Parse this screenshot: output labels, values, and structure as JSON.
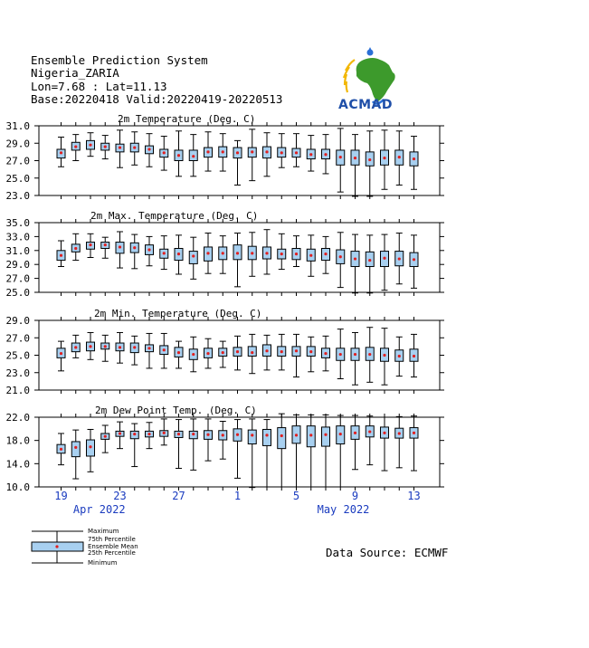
{
  "header": {
    "line1": "Ensemble Prediction System",
    "line2": "Nigeria_ZARIA",
    "line3": "Lon=7.68 : Lat=11.13",
    "line4": "Base:20220418 Valid:20220419-20220513"
  },
  "logo": {
    "text": "ACMAD",
    "icon": "africa-map-logo-icon"
  },
  "source": "Data Source: ECMWF",
  "legend": {
    "maximum": "Maximum",
    "p75": "75th Percentile",
    "mean": "Ensemble Mean",
    "p25": "25th Percentile",
    "minimum": "Minimum"
  },
  "colors": {
    "box_fill": "#a8d0f0",
    "mean_dot": "#e02020",
    "axis_label": "#1a3bbf"
  },
  "x_axis": {
    "day_labels": [
      {
        "i": 0,
        "label": "19"
      },
      {
        "i": 4,
        "label": "23"
      },
      {
        "i": 8,
        "label": "27"
      },
      {
        "i": 12,
        "label": "1"
      },
      {
        "i": 16,
        "label": "5"
      },
      {
        "i": 20,
        "label": "9"
      },
      {
        "i": 24,
        "label": "13"
      }
    ],
    "month_labels": [
      {
        "i": 2.6,
        "label": "Apr 2022"
      },
      {
        "i": 19.2,
        "label": "May 2022"
      }
    ]
  },
  "chart_data": [
    {
      "type": "box",
      "title": "2m Temperature (Deg. C)",
      "ylim": [
        23.0,
        31.0
      ],
      "yticks": [
        "23.0",
        "25.0",
        "27.0",
        "29.0",
        "31.0"
      ],
      "yvals": [
        23,
        25,
        27,
        29,
        31
      ],
      "boxes": [
        {
          "min": 26.3,
          "q1": 27.3,
          "mean": 27.9,
          "q3": 28.3,
          "max": 29.7
        },
        {
          "min": 27.0,
          "q1": 28.2,
          "mean": 28.6,
          "q3": 29.1,
          "max": 30.0
        },
        {
          "min": 27.5,
          "q1": 28.3,
          "mean": 28.8,
          "q3": 29.3,
          "max": 30.2
        },
        {
          "min": 27.2,
          "q1": 28.2,
          "mean": 28.6,
          "q3": 29.0,
          "max": 29.9
        },
        {
          "min": 26.2,
          "q1": 28.0,
          "mean": 28.5,
          "q3": 28.9,
          "max": 30.5
        },
        {
          "min": 26.5,
          "q1": 28.0,
          "mean": 28.5,
          "q3": 29.0,
          "max": 30.3
        },
        {
          "min": 26.3,
          "q1": 27.8,
          "mean": 28.3,
          "q3": 28.7,
          "max": 30.1
        },
        {
          "min": 25.9,
          "q1": 27.4,
          "mean": 27.9,
          "q3": 28.3,
          "max": 29.8
        },
        {
          "min": 25.2,
          "q1": 27.0,
          "mean": 27.6,
          "q3": 28.2,
          "max": 30.4
        },
        {
          "min": 25.2,
          "q1": 27.0,
          "mean": 27.5,
          "q3": 28.2,
          "max": 30.0
        },
        {
          "min": 25.8,
          "q1": 27.4,
          "mean": 28.0,
          "q3": 28.5,
          "max": 30.3
        },
        {
          "min": 25.8,
          "q1": 27.4,
          "mean": 28.0,
          "q3": 28.6,
          "max": 30.1
        },
        {
          "min": 24.2,
          "q1": 27.3,
          "mean": 27.9,
          "q3": 28.5,
          "max": 29.3
        },
        {
          "min": 24.7,
          "q1": 27.4,
          "mean": 28.0,
          "q3": 28.5,
          "max": 30.6
        },
        {
          "min": 25.2,
          "q1": 27.3,
          "mean": 28.0,
          "q3": 28.6,
          "max": 30.2
        },
        {
          "min": 26.2,
          "q1": 27.4,
          "mean": 27.9,
          "q3": 28.5,
          "max": 30.1
        },
        {
          "min": 26.3,
          "q1": 27.4,
          "mean": 27.9,
          "q3": 28.4,
          "max": 30.1
        },
        {
          "min": 25.8,
          "q1": 27.2,
          "mean": 27.7,
          "q3": 28.3,
          "max": 29.9
        },
        {
          "min": 25.5,
          "q1": 27.2,
          "mean": 27.7,
          "q3": 28.3,
          "max": 30.0
        },
        {
          "min": 23.4,
          "q1": 26.5,
          "mean": 27.4,
          "q3": 28.2,
          "max": 30.7
        },
        {
          "min": 22.9,
          "q1": 26.5,
          "mean": 27.3,
          "q3": 28.2,
          "max": 30.0
        },
        {
          "min": 22.9,
          "q1": 26.4,
          "mean": 27.1,
          "q3": 28.0,
          "max": 30.4
        },
        {
          "min": 23.7,
          "q1": 26.5,
          "mean": 27.3,
          "q3": 28.2,
          "max": 30.5
        },
        {
          "min": 24.2,
          "q1": 26.5,
          "mean": 27.4,
          "q3": 28.2,
          "max": 30.4
        },
        {
          "min": 23.7,
          "q1": 26.4,
          "mean": 27.2,
          "q3": 28.0,
          "max": 29.8
        }
      ]
    },
    {
      "type": "box",
      "title": "2m Max. Temperature (Deg. C)",
      "ylim": [
        25.0,
        35.0
      ],
      "yticks": [
        "25.0",
        "27.0",
        "29.0",
        "31.0",
        "33.0",
        "35.0"
      ],
      "yvals": [
        25,
        27,
        29,
        31,
        33,
        35
      ],
      "boxes": [
        {
          "min": 28.7,
          "q1": 29.6,
          "mean": 30.3,
          "q3": 31.0,
          "max": 32.4
        },
        {
          "min": 29.6,
          "q1": 30.8,
          "mean": 31.3,
          "q3": 31.9,
          "max": 33.4
        },
        {
          "min": 30.0,
          "q1": 31.2,
          "mean": 31.8,
          "q3": 32.2,
          "max": 33.4
        },
        {
          "min": 29.9,
          "q1": 31.3,
          "mean": 31.8,
          "q3": 32.2,
          "max": 32.9
        },
        {
          "min": 28.5,
          "q1": 30.6,
          "mean": 31.5,
          "q3": 32.2,
          "max": 33.7
        },
        {
          "min": 28.4,
          "q1": 30.7,
          "mean": 31.4,
          "q3": 32.1,
          "max": 33.3
        },
        {
          "min": 28.8,
          "q1": 30.4,
          "mean": 31.1,
          "q3": 31.8,
          "max": 33.0
        },
        {
          "min": 28.3,
          "q1": 29.9,
          "mean": 30.6,
          "q3": 31.2,
          "max": 33.1
        },
        {
          "min": 27.6,
          "q1": 29.6,
          "mean": 30.5,
          "q3": 31.3,
          "max": 33.2
        },
        {
          "min": 26.9,
          "q1": 29.1,
          "mean": 30.2,
          "q3": 30.9,
          "max": 32.9
        },
        {
          "min": 27.7,
          "q1": 29.5,
          "mean": 30.6,
          "q3": 31.5,
          "max": 33.5
        },
        {
          "min": 27.7,
          "q1": 29.7,
          "mean": 30.6,
          "q3": 31.5,
          "max": 33.1
        },
        {
          "min": 25.8,
          "q1": 29.7,
          "mean": 30.6,
          "q3": 31.8,
          "max": 33.5
        },
        {
          "min": 27.3,
          "q1": 29.7,
          "mean": 30.6,
          "q3": 31.6,
          "max": 33.6
        },
        {
          "min": 27.6,
          "q1": 29.8,
          "mean": 30.6,
          "q3": 31.5,
          "max": 34.0
        },
        {
          "min": 28.3,
          "q1": 29.8,
          "mean": 30.5,
          "q3": 31.2,
          "max": 33.4
        },
        {
          "min": 28.7,
          "q1": 29.7,
          "mean": 30.5,
          "q3": 31.3,
          "max": 33.1
        },
        {
          "min": 27.3,
          "q1": 29.5,
          "mean": 30.3,
          "q3": 31.2,
          "max": 33.2
        },
        {
          "min": 27.7,
          "q1": 29.6,
          "mean": 30.5,
          "q3": 31.3,
          "max": 33.0
        },
        {
          "min": 25.7,
          "q1": 29.1,
          "mean": 30.1,
          "q3": 31.1,
          "max": 33.6
        },
        {
          "min": 24.9,
          "q1": 28.7,
          "mean": 29.8,
          "q3": 30.9,
          "max": 33.3
        },
        {
          "min": 24.9,
          "q1": 28.7,
          "mean": 29.6,
          "q3": 30.8,
          "max": 33.2
        },
        {
          "min": 25.3,
          "q1": 28.7,
          "mean": 29.9,
          "q3": 30.9,
          "max": 33.3
        },
        {
          "min": 26.2,
          "q1": 28.8,
          "mean": 29.8,
          "q3": 30.9,
          "max": 33.5
        },
        {
          "min": 25.6,
          "q1": 28.7,
          "mean": 29.7,
          "q3": 30.7,
          "max": 33.2
        }
      ]
    },
    {
      "type": "box",
      "title": "2m Min. Temperature (Deg. C)",
      "ylim": [
        21.0,
        29.0
      ],
      "yticks": [
        "21.0",
        "23.0",
        "25.0",
        "27.0",
        "29.0"
      ],
      "yvals": [
        21,
        23,
        25,
        27,
        29
      ],
      "boxes": [
        {
          "min": 23.2,
          "q1": 24.7,
          "mean": 25.2,
          "q3": 25.8,
          "max": 26.6
        },
        {
          "min": 24.7,
          "q1": 25.4,
          "mean": 25.9,
          "q3": 26.4,
          "max": 27.3
        },
        {
          "min": 24.5,
          "q1": 25.5,
          "mean": 26.0,
          "q3": 26.5,
          "max": 27.6
        },
        {
          "min": 24.3,
          "q1": 25.7,
          "mean": 26.0,
          "q3": 26.4,
          "max": 27.3
        },
        {
          "min": 24.1,
          "q1": 25.5,
          "mean": 25.9,
          "q3": 26.4,
          "max": 27.6
        },
        {
          "min": 23.9,
          "q1": 25.3,
          "mean": 25.9,
          "q3": 26.4,
          "max": 27.2
        },
        {
          "min": 23.5,
          "q1": 25.4,
          "mean": 25.8,
          "q3": 26.2,
          "max": 27.5
        },
        {
          "min": 23.5,
          "q1": 25.1,
          "mean": 25.6,
          "q3": 26.1,
          "max": 27.5
        },
        {
          "min": 23.5,
          "q1": 24.8,
          "mean": 25.3,
          "q3": 25.9,
          "max": 26.6
        },
        {
          "min": 23.1,
          "q1": 24.5,
          "mean": 25.1,
          "q3": 25.7,
          "max": 27.1
        },
        {
          "min": 23.5,
          "q1": 24.7,
          "mean": 25.2,
          "q3": 25.8,
          "max": 26.9
        },
        {
          "min": 23.6,
          "q1": 24.9,
          "mean": 25.3,
          "q3": 25.8,
          "max": 26.6
        },
        {
          "min": 23.3,
          "q1": 24.9,
          "mean": 25.4,
          "q3": 25.9,
          "max": 27.2
        },
        {
          "min": 22.9,
          "q1": 24.9,
          "mean": 25.3,
          "q3": 26.0,
          "max": 27.4
        },
        {
          "min": 23.3,
          "q1": 24.9,
          "mean": 25.5,
          "q3": 26.2,
          "max": 27.3
        },
        {
          "min": 23.3,
          "q1": 24.9,
          "mean": 25.4,
          "q3": 26.0,
          "max": 27.4
        },
        {
          "min": 22.5,
          "q1": 24.9,
          "mean": 25.5,
          "q3": 26.0,
          "max": 27.4
        },
        {
          "min": 23.1,
          "q1": 24.9,
          "mean": 25.4,
          "q3": 26.0,
          "max": 27.1
        },
        {
          "min": 23.2,
          "q1": 24.7,
          "mean": 25.2,
          "q3": 25.8,
          "max": 27.2
        },
        {
          "min": 22.3,
          "q1": 24.4,
          "mean": 25.1,
          "q3": 25.8,
          "max": 28.0
        },
        {
          "min": 21.6,
          "q1": 24.4,
          "mean": 25.1,
          "q3": 25.8,
          "max": 27.6
        },
        {
          "min": 21.9,
          "q1": 24.4,
          "mean": 25.1,
          "q3": 25.9,
          "max": 28.2
        },
        {
          "min": 21.6,
          "q1": 24.3,
          "mean": 25.0,
          "q3": 25.8,
          "max": 28.1
        },
        {
          "min": 22.6,
          "q1": 24.3,
          "mean": 24.9,
          "q3": 25.6,
          "max": 27.1
        },
        {
          "min": 22.5,
          "q1": 24.3,
          "mean": 24.9,
          "q3": 25.7,
          "max": 27.4
        }
      ]
    },
    {
      "type": "box",
      "title": "2m Dew Point Temp. (Deg. C)",
      "ylim": [
        10.0,
        22.0
      ],
      "yticks": [
        "10.0",
        "14.0",
        "18.0",
        "22.0"
      ],
      "yvals": [
        10,
        14,
        18,
        22
      ],
      "boxes": [
        {
          "min": 13.8,
          "q1": 15.8,
          "mean": 16.5,
          "q3": 17.3,
          "max": 19.2
        },
        {
          "min": 11.4,
          "q1": 15.2,
          "mean": 16.8,
          "q3": 17.8,
          "max": 19.8
        },
        {
          "min": 12.6,
          "q1": 15.3,
          "mean": 16.9,
          "q3": 18.1,
          "max": 19.9
        },
        {
          "min": 15.9,
          "q1": 18.2,
          "mean": 18.7,
          "q3": 19.2,
          "max": 20.6
        },
        {
          "min": 16.6,
          "q1": 18.7,
          "mean": 19.2,
          "q3": 19.6,
          "max": 21.2
        },
        {
          "min": 13.5,
          "q1": 18.3,
          "mean": 19.1,
          "q3": 19.6,
          "max": 20.9
        },
        {
          "min": 16.6,
          "q1": 18.6,
          "mean": 19.1,
          "q3": 19.6,
          "max": 21.1
        },
        {
          "min": 17.2,
          "q1": 18.7,
          "mean": 19.3,
          "q3": 19.7,
          "max": 21.7
        },
        {
          "min": 13.2,
          "q1": 18.5,
          "mean": 19.1,
          "q3": 19.6,
          "max": 21.6
        },
        {
          "min": 12.9,
          "q1": 18.3,
          "mean": 19.1,
          "q3": 19.6,
          "max": 21.7
        },
        {
          "min": 14.5,
          "q1": 18.2,
          "mean": 19.0,
          "q3": 19.7,
          "max": 21.7
        },
        {
          "min": 14.8,
          "q1": 18.1,
          "mean": 18.9,
          "q3": 19.7,
          "max": 21.3
        },
        {
          "min": 11.5,
          "q1": 17.9,
          "mean": 19.0,
          "q3": 20.0,
          "max": 21.6
        },
        {
          "min": 9.9,
          "q1": 17.4,
          "mean": 18.9,
          "q3": 19.8,
          "max": 21.7
        },
        {
          "min": 10.0,
          "q1": 17.1,
          "mean": 18.9,
          "q3": 19.9,
          "max": 21.6
        },
        {
          "min": 10.0,
          "q1": 16.6,
          "mean": 18.8,
          "q3": 20.2,
          "max": 22.6
        },
        {
          "min": 10.0,
          "q1": 17.5,
          "mean": 18.9,
          "q3": 20.5,
          "max": 22.4
        },
        {
          "min": 10.0,
          "q1": 16.9,
          "mean": 18.9,
          "q3": 20.5,
          "max": 22.4
        },
        {
          "min": 10.0,
          "q1": 17.0,
          "mean": 19.0,
          "q3": 20.3,
          "max": 22.4
        },
        {
          "min": 10.0,
          "q1": 17.4,
          "mean": 19.1,
          "q3": 20.5,
          "max": 22.3
        },
        {
          "min": 13.0,
          "q1": 18.2,
          "mean": 19.3,
          "q3": 20.5,
          "max": 22.3
        },
        {
          "min": 13.8,
          "q1": 18.6,
          "mean": 19.5,
          "q3": 20.5,
          "max": 22.2
        },
        {
          "min": 12.8,
          "q1": 18.4,
          "mean": 19.3,
          "q3": 20.3,
          "max": 22.0
        },
        {
          "min": 13.3,
          "q1": 18.4,
          "mean": 19.2,
          "q3": 20.1,
          "max": 22.1
        },
        {
          "min": 12.8,
          "q1": 18.4,
          "mean": 19.3,
          "q3": 20.2,
          "max": 22.2
        }
      ]
    }
  ]
}
